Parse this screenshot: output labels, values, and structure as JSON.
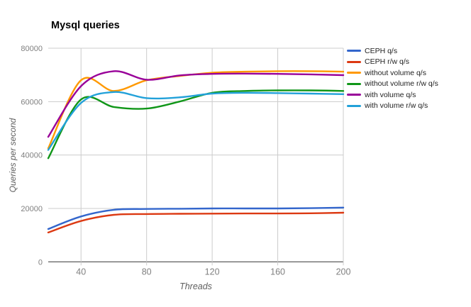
{
  "chart_data": {
    "type": "line",
    "title": "Mysql queries",
    "xlabel": "Threads",
    "ylabel": "Queries per second",
    "xlim": [
      20,
      200
    ],
    "ylim": [
      0,
      80000
    ],
    "xticks": [
      40,
      80,
      120,
      160,
      200
    ],
    "yticks": [
      0,
      20000,
      40000,
      60000,
      80000
    ],
    "grid": true,
    "legend_position": "right",
    "x": [
      20,
      40,
      60,
      80,
      100,
      120,
      140,
      160,
      180,
      200
    ],
    "series": [
      {
        "name": "CEPH q/s",
        "color": "#3366CC",
        "values": [
          12300,
          17000,
          19500,
          19800,
          19900,
          20000,
          20000,
          20000,
          20100,
          20300
        ]
      },
      {
        "name": "CEPH r/w q/s",
        "color": "#DC3912",
        "values": [
          11000,
          15300,
          17600,
          17900,
          18000,
          18050,
          18100,
          18100,
          18200,
          18400
        ]
      },
      {
        "name": "without volume q/s",
        "color": "#FF9900",
        "values": [
          42500,
          68000,
          64000,
          68000,
          69600,
          70800,
          71200,
          71400,
          71400,
          71200
        ]
      },
      {
        "name": "without volume r/w q/s",
        "color": "#109618",
        "values": [
          38800,
          60800,
          58000,
          57400,
          60000,
          63300,
          64000,
          64200,
          64200,
          64000
        ]
      },
      {
        "name": "with volume q/s",
        "color": "#990099",
        "values": [
          46800,
          65800,
          71400,
          68200,
          69800,
          70400,
          70500,
          70400,
          70200,
          69900
        ]
      },
      {
        "name": "with volume r/w q/s",
        "color": "#22A1D9",
        "values": [
          41900,
          59500,
          63600,
          61300,
          61600,
          63000,
          63300,
          63200,
          63000,
          62800
        ]
      }
    ],
    "colors": {
      "gridline": "#CCCCCC",
      "axis_line": "#333333",
      "tick_label": "#808080",
      "axis_title": "#5F5F5F",
      "title": "#000000"
    }
  }
}
